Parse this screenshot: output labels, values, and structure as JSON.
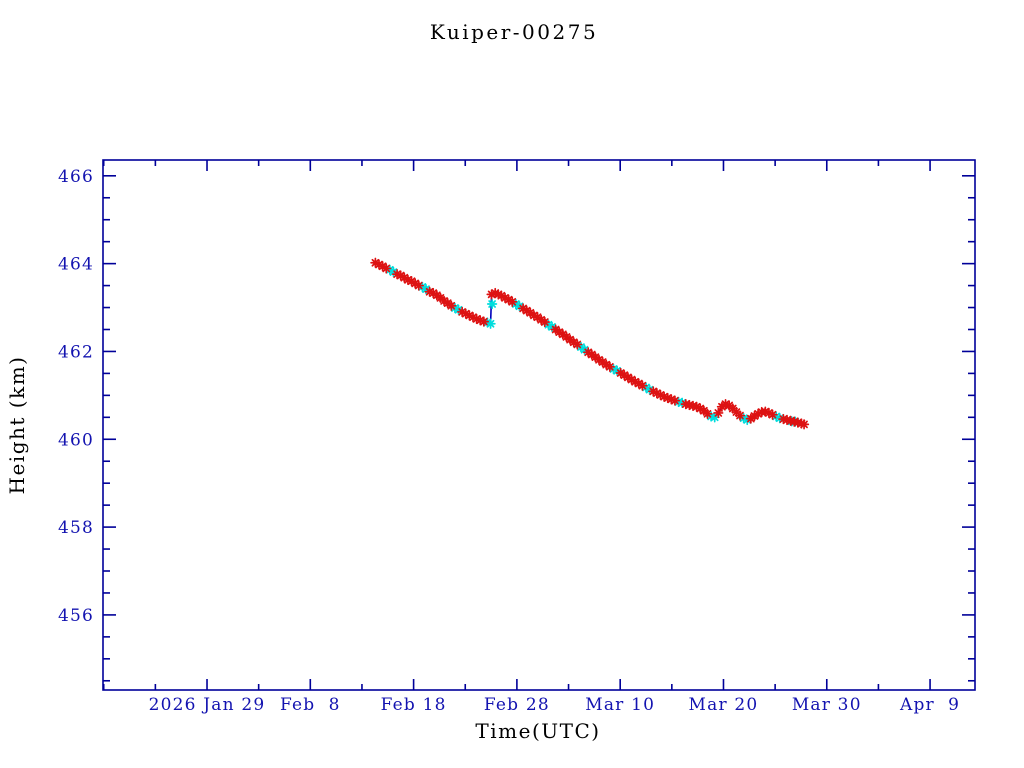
{
  "window": {
    "background": "#ffffff"
  },
  "chart_data": {
    "type": "scatter",
    "title": "Kuiper-00275",
    "xlabel": "Time(UTC)",
    "ylabel": "Height (km)",
    "x_axis_note": "x values are days relative to the 2026 Jan 29 major tick",
    "xlim": [
      -10.07,
      74.35
    ],
    "ylim": [
      454.29,
      466.36
    ],
    "x_minor_step": 5,
    "y_minor_step": 0.5,
    "grid": false,
    "legend": null,
    "x_major_ticks": [
      {
        "d": 0,
        "label": "2026 Jan 29"
      },
      {
        "d": 10,
        "label": "Feb  8"
      },
      {
        "d": 20,
        "label": "Feb 18"
      },
      {
        "d": 30,
        "label": "Feb 28"
      },
      {
        "d": 40,
        "label": "Mar 10"
      },
      {
        "d": 50,
        "label": "Mar 20"
      },
      {
        "d": 60,
        "label": "Mar 30"
      },
      {
        "d": 70,
        "label": "Apr  9"
      }
    ],
    "y_major_ticks": [
      {
        "v": 456,
        "label": "456"
      },
      {
        "v": 458,
        "label": "458"
      },
      {
        "v": 460,
        "label": "460"
      },
      {
        "v": 462,
        "label": "462"
      },
      {
        "v": 464,
        "label": "464"
      },
      {
        "v": 466,
        "label": "466"
      }
    ],
    "colors": {
      "axis": "#000099",
      "text": "#1313b0",
      "line": "#0000bb",
      "red_marker": "#dd1212",
      "cyan_marker": "#00dddd"
    },
    "series": [
      {
        "name": "height-track-line",
        "type": "line",
        "color_key": "line",
        "points": [
          [
            16.3,
            464.02
          ],
          [
            16.65,
            463.98
          ],
          [
            17.0,
            463.94
          ],
          [
            17.35,
            463.89
          ],
          [
            17.7,
            463.86
          ],
          [
            18.05,
            463.81
          ],
          [
            18.4,
            463.76
          ],
          [
            18.75,
            463.73
          ],
          [
            19.1,
            463.68
          ],
          [
            19.45,
            463.63
          ],
          [
            19.8,
            463.6
          ],
          [
            20.15,
            463.55
          ],
          [
            20.5,
            463.5
          ],
          [
            20.85,
            463.47
          ],
          [
            21.2,
            463.42
          ],
          [
            21.55,
            463.36
          ],
          [
            21.9,
            463.33
          ],
          [
            22.25,
            463.28
          ],
          [
            22.6,
            463.22
          ],
          [
            22.95,
            463.15
          ],
          [
            23.3,
            463.1
          ],
          [
            23.65,
            463.04
          ],
          [
            24.0,
            462.99
          ],
          [
            24.35,
            462.95
          ],
          [
            24.7,
            462.9
          ],
          [
            25.05,
            462.86
          ],
          [
            25.4,
            462.82
          ],
          [
            25.75,
            462.78
          ],
          [
            26.1,
            462.74
          ],
          [
            26.45,
            462.71
          ],
          [
            26.8,
            462.68
          ],
          [
            27.15,
            462.66
          ],
          [
            27.45,
            462.63
          ],
          [
            27.55,
            463.3
          ],
          [
            27.9,
            463.33
          ],
          [
            28.2,
            463.3
          ],
          [
            28.5,
            463.27
          ],
          [
            28.85,
            463.22
          ],
          [
            29.2,
            463.18
          ],
          [
            29.55,
            463.13
          ],
          [
            29.9,
            463.08
          ],
          [
            30.25,
            463.03
          ],
          [
            30.6,
            462.98
          ],
          [
            30.95,
            462.93
          ],
          [
            31.3,
            462.88
          ],
          [
            31.65,
            462.82
          ],
          [
            32.0,
            462.78
          ],
          [
            32.35,
            462.72
          ],
          [
            32.7,
            462.67
          ],
          [
            33.05,
            462.61
          ],
          [
            33.4,
            462.56
          ],
          [
            33.75,
            462.5
          ],
          [
            34.1,
            462.44
          ],
          [
            34.45,
            462.39
          ],
          [
            34.8,
            462.33
          ],
          [
            35.15,
            462.27
          ],
          [
            35.5,
            462.21
          ],
          [
            35.85,
            462.16
          ],
          [
            36.2,
            462.1
          ],
          [
            36.55,
            462.04
          ],
          [
            36.9,
            461.98
          ],
          [
            37.25,
            461.93
          ],
          [
            37.6,
            461.87
          ],
          [
            37.95,
            461.81
          ],
          [
            38.3,
            461.76
          ],
          [
            38.65,
            461.7
          ],
          [
            39.0,
            461.65
          ],
          [
            39.35,
            461.6
          ],
          [
            39.7,
            461.56
          ],
          [
            40.05,
            461.51
          ],
          [
            40.4,
            461.46
          ],
          [
            40.75,
            461.41
          ],
          [
            41.1,
            461.36
          ],
          [
            41.45,
            461.31
          ],
          [
            41.8,
            461.27
          ],
          [
            42.15,
            461.22
          ],
          [
            42.5,
            461.18
          ],
          [
            42.85,
            461.13
          ],
          [
            43.2,
            461.09
          ],
          [
            43.55,
            461.05
          ],
          [
            43.9,
            461.01
          ],
          [
            44.25,
            460.97
          ],
          [
            44.6,
            460.94
          ],
          [
            44.95,
            460.91
          ],
          [
            45.3,
            460.88
          ],
          [
            45.65,
            460.85
          ],
          [
            46.0,
            460.83
          ],
          [
            46.35,
            460.8
          ],
          [
            46.7,
            460.78
          ],
          [
            47.05,
            460.76
          ],
          [
            47.4,
            460.74
          ],
          [
            47.75,
            460.7
          ],
          [
            48.1,
            460.65
          ],
          [
            48.45,
            460.58
          ],
          [
            48.8,
            460.52
          ],
          [
            49.15,
            460.5
          ],
          [
            49.5,
            460.6
          ],
          [
            49.85,
            460.74
          ],
          [
            50.2,
            460.8
          ],
          [
            50.55,
            460.77
          ],
          [
            50.9,
            460.7
          ],
          [
            51.25,
            460.62
          ],
          [
            51.6,
            460.54
          ],
          [
            51.95,
            460.48
          ],
          [
            52.3,
            460.44
          ],
          [
            52.65,
            460.47
          ],
          [
            53.0,
            460.53
          ],
          [
            53.35,
            460.58
          ],
          [
            53.7,
            460.62
          ],
          [
            54.05,
            460.63
          ],
          [
            54.4,
            460.6
          ],
          [
            54.75,
            460.56
          ],
          [
            55.1,
            460.52
          ],
          [
            55.45,
            460.48
          ],
          [
            55.8,
            460.46
          ],
          [
            56.15,
            460.44
          ],
          [
            56.5,
            460.42
          ],
          [
            56.85,
            460.4
          ],
          [
            57.2,
            460.38
          ],
          [
            57.55,
            460.36
          ],
          [
            57.8,
            460.34
          ]
        ]
      },
      {
        "name": "cyan-observations",
        "type": "scatter",
        "marker": "asterisk",
        "color_key": "cyan_marker",
        "points": [
          [
            17.7,
            463.86
          ],
          [
            18.05,
            463.81
          ],
          [
            20.85,
            463.47
          ],
          [
            21.2,
            463.42
          ],
          [
            24.0,
            462.99
          ],
          [
            24.35,
            462.95
          ],
          [
            27.15,
            462.66
          ],
          [
            27.45,
            462.63
          ],
          [
            27.6,
            463.08
          ],
          [
            29.9,
            463.08
          ],
          [
            30.25,
            463.03
          ],
          [
            33.05,
            462.61
          ],
          [
            33.4,
            462.56
          ],
          [
            36.2,
            462.1
          ],
          [
            36.55,
            462.04
          ],
          [
            39.35,
            461.6
          ],
          [
            39.7,
            461.56
          ],
          [
            42.5,
            461.18
          ],
          [
            42.85,
            461.13
          ],
          [
            45.65,
            460.85
          ],
          [
            46.0,
            460.83
          ],
          [
            48.8,
            460.52
          ],
          [
            49.15,
            460.5
          ],
          [
            51.95,
            460.48
          ],
          [
            52.3,
            460.44
          ],
          [
            55.1,
            460.52
          ],
          [
            55.45,
            460.48
          ],
          [
            56.6,
            460.41
          ],
          [
            56.95,
            460.4
          ]
        ]
      },
      {
        "name": "red-observations",
        "type": "scatter",
        "marker": "asterisk",
        "color_key": "red_marker",
        "points": [
          [
            16.3,
            464.02
          ],
          [
            16.65,
            463.98
          ],
          [
            17.0,
            463.94
          ],
          [
            17.35,
            463.89
          ],
          [
            18.4,
            463.76
          ],
          [
            18.75,
            463.73
          ],
          [
            19.1,
            463.68
          ],
          [
            19.45,
            463.63
          ],
          [
            19.8,
            463.6
          ],
          [
            20.15,
            463.55
          ],
          [
            20.5,
            463.5
          ],
          [
            21.55,
            463.36
          ],
          [
            21.9,
            463.33
          ],
          [
            22.25,
            463.28
          ],
          [
            22.6,
            463.22
          ],
          [
            22.95,
            463.15
          ],
          [
            23.3,
            463.1
          ],
          [
            23.65,
            463.04
          ],
          [
            24.7,
            462.9
          ],
          [
            25.05,
            462.86
          ],
          [
            25.4,
            462.82
          ],
          [
            25.75,
            462.78
          ],
          [
            26.1,
            462.74
          ],
          [
            26.45,
            462.71
          ],
          [
            26.8,
            462.68
          ],
          [
            27.55,
            463.3
          ],
          [
            27.9,
            463.33
          ],
          [
            28.2,
            463.3
          ],
          [
            28.5,
            463.27
          ],
          [
            28.85,
            463.22
          ],
          [
            29.2,
            463.18
          ],
          [
            29.55,
            463.13
          ],
          [
            30.6,
            462.98
          ],
          [
            30.95,
            462.93
          ],
          [
            31.3,
            462.88
          ],
          [
            31.65,
            462.82
          ],
          [
            32.0,
            462.78
          ],
          [
            32.35,
            462.72
          ],
          [
            32.7,
            462.67
          ],
          [
            33.75,
            462.5
          ],
          [
            34.1,
            462.44
          ],
          [
            34.45,
            462.39
          ],
          [
            34.8,
            462.33
          ],
          [
            35.15,
            462.27
          ],
          [
            35.5,
            462.21
          ],
          [
            35.85,
            462.16
          ],
          [
            36.9,
            461.98
          ],
          [
            37.25,
            461.93
          ],
          [
            37.6,
            461.87
          ],
          [
            37.95,
            461.81
          ],
          [
            38.3,
            461.76
          ],
          [
            38.65,
            461.7
          ],
          [
            39.0,
            461.65
          ],
          [
            40.05,
            461.51
          ],
          [
            40.4,
            461.46
          ],
          [
            40.75,
            461.41
          ],
          [
            41.1,
            461.36
          ],
          [
            41.45,
            461.31
          ],
          [
            41.8,
            461.27
          ],
          [
            42.15,
            461.22
          ],
          [
            43.2,
            461.09
          ],
          [
            43.55,
            461.05
          ],
          [
            43.9,
            461.01
          ],
          [
            44.25,
            460.97
          ],
          [
            44.6,
            460.94
          ],
          [
            44.95,
            460.91
          ],
          [
            45.3,
            460.88
          ],
          [
            46.35,
            460.8
          ],
          [
            46.7,
            460.78
          ],
          [
            47.05,
            460.76
          ],
          [
            47.4,
            460.74
          ],
          [
            47.75,
            460.7
          ],
          [
            48.1,
            460.65
          ],
          [
            48.45,
            460.58
          ],
          [
            49.5,
            460.6
          ],
          [
            49.85,
            460.74
          ],
          [
            50.2,
            460.8
          ],
          [
            50.55,
            460.77
          ],
          [
            50.9,
            460.7
          ],
          [
            51.25,
            460.62
          ],
          [
            51.6,
            460.54
          ],
          [
            52.65,
            460.47
          ],
          [
            53.0,
            460.53
          ],
          [
            53.35,
            460.58
          ],
          [
            53.7,
            460.62
          ],
          [
            54.05,
            460.63
          ],
          [
            54.4,
            460.6
          ],
          [
            54.75,
            460.56
          ],
          [
            55.8,
            460.46
          ],
          [
            56.15,
            460.44
          ],
          [
            56.5,
            460.42
          ],
          [
            56.85,
            460.4
          ],
          [
            57.2,
            460.38
          ],
          [
            57.55,
            460.36
          ],
          [
            57.8,
            460.34
          ]
        ]
      }
    ]
  }
}
